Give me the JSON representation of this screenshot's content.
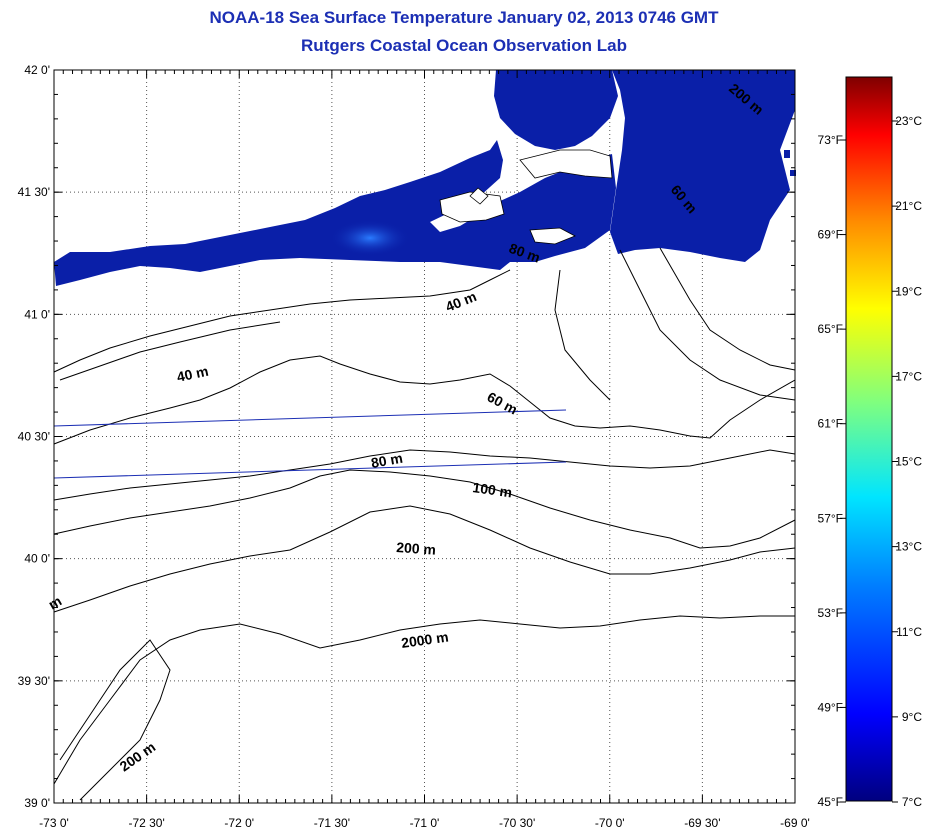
{
  "title": "NOAA-18 Sea Surface Temperature January 02, 2013 0746 GMT",
  "subtitle": "Rutgers Coastal Ocean Observation Lab",
  "map": {
    "lon_range": [
      -73,
      -69
    ],
    "lat_range": [
      39,
      42
    ],
    "lat_ticks": [
      {
        "value": 42.0,
        "label": "42 0'"
      },
      {
        "value": 41.5,
        "label": "41 30'"
      },
      {
        "value": 41.0,
        "label": "41 0'"
      },
      {
        "value": 40.5,
        "label": "40 30'"
      },
      {
        "value": 40.0,
        "label": "40 0'"
      },
      {
        "value": 39.5,
        "label": "39 30'"
      },
      {
        "value": 39.0,
        "label": "39 0'"
      }
    ],
    "lon_ticks": [
      {
        "value": -73.0,
        "label": "-73 0'"
      },
      {
        "value": -72.5,
        "label": "-72 30'"
      },
      {
        "value": -72.0,
        "label": "-72 0'"
      },
      {
        "value": -71.5,
        "label": "-71 30'"
      },
      {
        "value": -71.0,
        "label": "-71 0'"
      },
      {
        "value": -70.5,
        "label": "-70 30'"
      },
      {
        "value": -70.0,
        "label": "-70 0'"
      },
      {
        "value": -69.5,
        "label": "-69 30'"
      },
      {
        "value": -69.0,
        "label": "-69 0'"
      }
    ],
    "contour_labels": [
      "40 m",
      "40 m",
      "60 m",
      "80 m",
      "100 m",
      "200 m",
      "2000 m",
      "200 m",
      "m",
      "80 m",
      "60 m",
      "200 m"
    ]
  },
  "colorbar": {
    "celsius": [
      "23°C",
      "21°C",
      "19°C",
      "17°C",
      "15°C",
      "13°C",
      "11°C",
      "9°C",
      "7°C"
    ],
    "fahrenheit": [
      "73°F",
      "69°F",
      "65°F",
      "61°F",
      "57°F",
      "53°F",
      "49°F",
      "45°F"
    ],
    "colors": [
      "#7f0000",
      "#ff0000",
      "#ff8c00",
      "#ffff00",
      "#7fff7f",
      "#00e5ff",
      "#0080ff",
      "#0000ff",
      "#00007f"
    ]
  }
}
